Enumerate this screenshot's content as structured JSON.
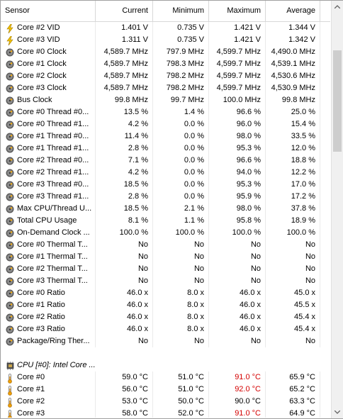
{
  "columns": [
    "Sensor",
    "Current",
    "Minimum",
    "Maximum",
    "Average"
  ],
  "rows": [
    {
      "icon": "bolt",
      "label": "Core #2 VID",
      "cur": "1.401 V",
      "min": "0.735 V",
      "max": "1.421 V",
      "avg": "1.344 V"
    },
    {
      "icon": "bolt",
      "label": "Core #3 VID",
      "cur": "1.311 V",
      "min": "0.735 V",
      "max": "1.421 V",
      "avg": "1.342 V"
    },
    {
      "icon": "clock",
      "label": "Core #0 Clock",
      "cur": "4,589.7 MHz",
      "min": "797.9 MHz",
      "max": "4,599.7 MHz",
      "avg": "4,490.0 MHz"
    },
    {
      "icon": "clock",
      "label": "Core #1 Clock",
      "cur": "4,589.7 MHz",
      "min": "798.3 MHz",
      "max": "4,599.7 MHz",
      "avg": "4,539.1 MHz"
    },
    {
      "icon": "clock",
      "label": "Core #2 Clock",
      "cur": "4,589.7 MHz",
      "min": "798.2 MHz",
      "max": "4,599.7 MHz",
      "avg": "4,530.6 MHz"
    },
    {
      "icon": "clock",
      "label": "Core #3 Clock",
      "cur": "4,589.7 MHz",
      "min": "798.2 MHz",
      "max": "4,599.7 MHz",
      "avg": "4,530.9 MHz"
    },
    {
      "icon": "clock",
      "label": "Bus Clock",
      "cur": "99.8 MHz",
      "min": "99.7 MHz",
      "max": "100.0 MHz",
      "avg": "99.8 MHz"
    },
    {
      "icon": "clock",
      "label": "Core #0 Thread #0...",
      "cur": "13.5 %",
      "min": "1.4 %",
      "max": "96.6 %",
      "avg": "25.0 %"
    },
    {
      "icon": "clock",
      "label": "Core #0 Thread #1...",
      "cur": "4.2 %",
      "min": "0.0 %",
      "max": "96.0 %",
      "avg": "15.4 %"
    },
    {
      "icon": "clock",
      "label": "Core #1 Thread #0...",
      "cur": "11.4 %",
      "min": "0.0 %",
      "max": "98.0 %",
      "avg": "33.5 %"
    },
    {
      "icon": "clock",
      "label": "Core #1 Thread #1...",
      "cur": "2.8 %",
      "min": "0.0 %",
      "max": "95.3 %",
      "avg": "12.0 %"
    },
    {
      "icon": "clock",
      "label": "Core #2 Thread #0...",
      "cur": "7.1 %",
      "min": "0.0 %",
      "max": "96.6 %",
      "avg": "18.8 %"
    },
    {
      "icon": "clock",
      "label": "Core #2 Thread #1...",
      "cur": "4.2 %",
      "min": "0.0 %",
      "max": "94.0 %",
      "avg": "12.2 %"
    },
    {
      "icon": "clock",
      "label": "Core #3 Thread #0...",
      "cur": "18.5 %",
      "min": "0.0 %",
      "max": "95.3 %",
      "avg": "17.0 %"
    },
    {
      "icon": "clock",
      "label": "Core #3 Thread #1...",
      "cur": "2.8 %",
      "min": "0.0 %",
      "max": "95.9 %",
      "avg": "17.2 %"
    },
    {
      "icon": "clock",
      "label": "Max CPU/Thread U...",
      "cur": "18.5 %",
      "min": "2.1 %",
      "max": "98.0 %",
      "avg": "37.8 %"
    },
    {
      "icon": "clock",
      "label": "Total CPU Usage",
      "cur": "8.1 %",
      "min": "1.1 %",
      "max": "95.8 %",
      "avg": "18.9 %"
    },
    {
      "icon": "clock",
      "label": "On-Demand Clock ...",
      "cur": "100.0 %",
      "min": "100.0 %",
      "max": "100.0 %",
      "avg": "100.0 %"
    },
    {
      "icon": "clock",
      "label": "Core #0 Thermal T...",
      "cur": "No",
      "min": "No",
      "max": "No",
      "avg": "No"
    },
    {
      "icon": "clock",
      "label": "Core #1 Thermal T...",
      "cur": "No",
      "min": "No",
      "max": "No",
      "avg": "No"
    },
    {
      "icon": "clock",
      "label": "Core #2 Thermal T...",
      "cur": "No",
      "min": "No",
      "max": "No",
      "avg": "No"
    },
    {
      "icon": "clock",
      "label": "Core #3 Thermal T...",
      "cur": "No",
      "min": "No",
      "max": "No",
      "avg": "No"
    },
    {
      "icon": "clock",
      "label": "Core #0 Ratio",
      "cur": "46.0 x",
      "min": "8.0 x",
      "max": "46.0 x",
      "avg": "45.0 x"
    },
    {
      "icon": "clock",
      "label": "Core #1 Ratio",
      "cur": "46.0 x",
      "min": "8.0 x",
      "max": "46.0 x",
      "avg": "45.5 x"
    },
    {
      "icon": "clock",
      "label": "Core #2 Ratio",
      "cur": "46.0 x",
      "min": "8.0 x",
      "max": "46.0 x",
      "avg": "45.4 x"
    },
    {
      "icon": "clock",
      "label": "Core #3 Ratio",
      "cur": "46.0 x",
      "min": "8.0 x",
      "max": "46.0 x",
      "avg": "45.4 x"
    },
    {
      "icon": "clock",
      "label": "Package/Ring Ther...",
      "cur": "No",
      "min": "No",
      "max": "No",
      "avg": "No"
    },
    {
      "blank": true
    },
    {
      "icon": "chip",
      "group": true,
      "label": "CPU [#0]: Intel Core ..."
    },
    {
      "icon": "therm",
      "label": "Core #0",
      "cur": "59.0 °C",
      "min": "51.0 °C",
      "max": "91.0 °C",
      "avg": "65.9 °C",
      "maxRed": true
    },
    {
      "icon": "therm",
      "label": "Core #1",
      "cur": "56.0 °C",
      "min": "51.0 °C",
      "max": "92.0 °C",
      "avg": "65.2 °C",
      "maxRed": true
    },
    {
      "icon": "therm",
      "label": "Core #2",
      "cur": "53.0 °C",
      "min": "50.0 °C",
      "max": "90.0 °C",
      "avg": "63.3 °C"
    },
    {
      "icon": "therm",
      "label": "Core #3",
      "cur": "58.0 °C",
      "min": "52.0 °C",
      "max": "91.0 °C",
      "avg": "64.9 °C",
      "maxRed": true
    }
  ]
}
